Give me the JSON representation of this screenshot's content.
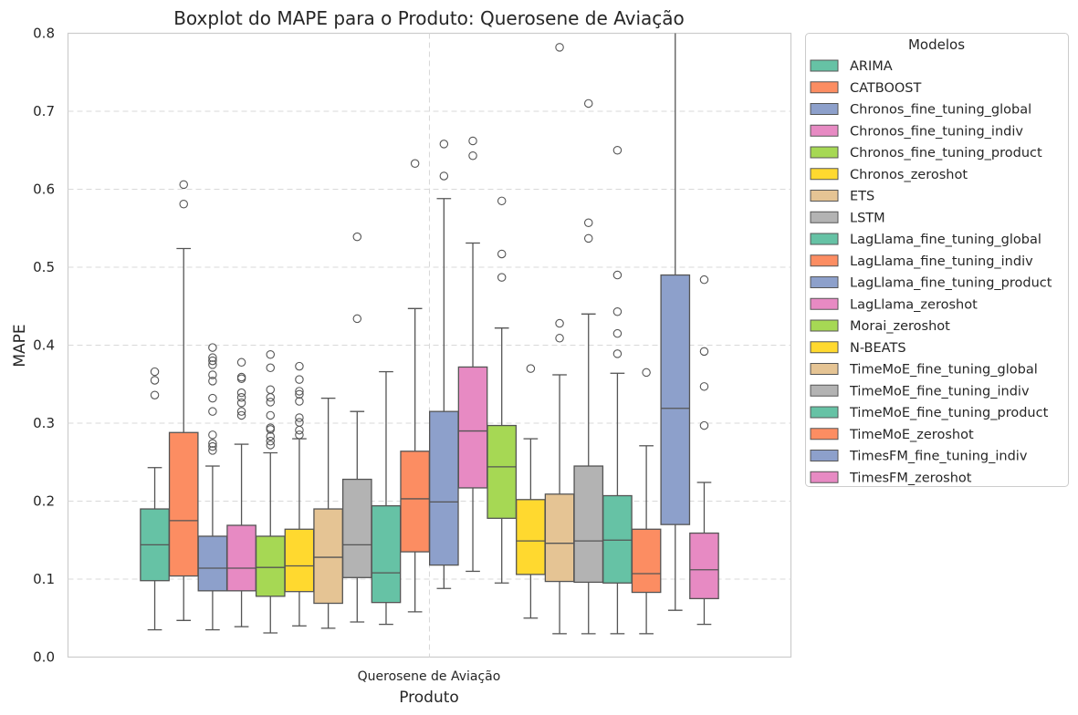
{
  "chart_data": {
    "type": "boxplot",
    "title": "Boxplot do MAPE para o Produto: Querosene de Aviação",
    "xlabel": "Produto",
    "ylabel": "MAPE",
    "category": "Querosene de Aviação",
    "ylim": [
      0.0,
      0.8
    ],
    "yticks": [
      "0.0",
      "0.1",
      "0.2",
      "0.3",
      "0.4",
      "0.5",
      "0.6",
      "0.7",
      "0.8"
    ],
    "grid": true,
    "legend_title": "Modelos",
    "legend_position": "outside-top-right",
    "series": [
      {
        "name": "ARIMA",
        "color": "#66c2a5",
        "whislo": 0.035,
        "q1": 0.098,
        "med": 0.144,
        "q3": 0.19,
        "whishi": 0.243,
        "fliers": [
          0.336,
          0.355,
          0.366
        ]
      },
      {
        "name": "CATBOOST",
        "color": "#fc8d62",
        "whislo": 0.047,
        "q1": 0.104,
        "med": 0.175,
        "q3": 0.288,
        "whishi": 0.524,
        "fliers": [
          0.581,
          0.606
        ]
      },
      {
        "name": "Chronos_fine_tuning_global",
        "color": "#8da0cb",
        "whislo": 0.035,
        "q1": 0.085,
        "med": 0.114,
        "q3": 0.155,
        "whishi": 0.245,
        "fliers": [
          0.265,
          0.27,
          0.274,
          0.285,
          0.315,
          0.332,
          0.354,
          0.362,
          0.375,
          0.38,
          0.384,
          0.397
        ]
      },
      {
        "name": "Chronos_fine_tuning_indiv",
        "color": "#e78ac3",
        "whislo": 0.039,
        "q1": 0.085,
        "med": 0.114,
        "q3": 0.169,
        "whishi": 0.273,
        "fliers": [
          0.31,
          0.315,
          0.326,
          0.333,
          0.339,
          0.357,
          0.359,
          0.378
        ]
      },
      {
        "name": "Chronos_fine_tuning_product",
        "color": "#a6d854",
        "whislo": 0.031,
        "q1": 0.078,
        "med": 0.115,
        "q3": 0.155,
        "whishi": 0.262,
        "fliers": [
          0.272,
          0.277,
          0.283,
          0.292,
          0.294,
          0.31,
          0.327,
          0.333,
          0.343,
          0.371,
          0.388
        ]
      },
      {
        "name": "Chronos_zeroshot",
        "color": "#ffd92f",
        "whislo": 0.04,
        "q1": 0.084,
        "med": 0.117,
        "q3": 0.164,
        "whishi": 0.28,
        "fliers": [
          0.285,
          0.291,
          0.301,
          0.307,
          0.328,
          0.337,
          0.341,
          0.356,
          0.373
        ]
      },
      {
        "name": "ETS",
        "color": "#e5c494",
        "whislo": 0.037,
        "q1": 0.069,
        "med": 0.128,
        "q3": 0.19,
        "whishi": 0.332,
        "fliers": []
      },
      {
        "name": "LSTM",
        "color": "#b3b3b3",
        "whislo": 0.045,
        "q1": 0.102,
        "med": 0.144,
        "q3": 0.228,
        "whishi": 0.315,
        "fliers": [
          0.434,
          0.539
        ]
      },
      {
        "name": "LagLlama_fine_tuning_global",
        "color": "#66c2a5",
        "whislo": 0.042,
        "q1": 0.07,
        "med": 0.108,
        "q3": 0.194,
        "whishi": 0.366,
        "fliers": []
      },
      {
        "name": "LagLlama_fine_tuning_indiv",
        "color": "#fc8d62",
        "whislo": 0.058,
        "q1": 0.135,
        "med": 0.203,
        "q3": 0.264,
        "whishi": 0.447,
        "fliers": [
          0.633
        ]
      },
      {
        "name": "LagLlama_fine_tuning_product",
        "color": "#8da0cb",
        "whislo": 0.088,
        "q1": 0.118,
        "med": 0.199,
        "q3": 0.315,
        "whishi": 0.588,
        "fliers": [
          0.617,
          0.658
        ]
      },
      {
        "name": "LagLlama_zeroshot",
        "color": "#e78ac3",
        "whislo": 0.11,
        "q1": 0.217,
        "med": 0.29,
        "q3": 0.372,
        "whishi": 0.531,
        "fliers": [
          0.643,
          0.662
        ]
      },
      {
        "name": "Morai_zeroshot",
        "color": "#a6d854",
        "whislo": 0.095,
        "q1": 0.178,
        "med": 0.244,
        "q3": 0.297,
        "whishi": 0.422,
        "fliers": [
          0.487,
          0.517,
          0.585
        ]
      },
      {
        "name": "N-BEATS",
        "color": "#ffd92f",
        "whislo": 0.05,
        "q1": 0.106,
        "med": 0.149,
        "q3": 0.202,
        "whishi": 0.28,
        "fliers": [
          0.37
        ]
      },
      {
        "name": "TimeMoE_fine_tuning_global",
        "color": "#e5c494",
        "whislo": 0.03,
        "q1": 0.097,
        "med": 0.146,
        "q3": 0.209,
        "whishi": 0.362,
        "fliers": [
          0.409,
          0.428,
          0.782
        ]
      },
      {
        "name": "TimeMoE_fine_tuning_indiv",
        "color": "#b3b3b3",
        "whislo": 0.03,
        "q1": 0.096,
        "med": 0.149,
        "q3": 0.245,
        "whishi": 0.44,
        "fliers": [
          0.537,
          0.557,
          0.71
        ]
      },
      {
        "name": "TimeMoE_fine_tuning_product",
        "color": "#66c2a5",
        "whislo": 0.03,
        "q1": 0.095,
        "med": 0.15,
        "q3": 0.207,
        "whishi": 0.364,
        "fliers": [
          0.389,
          0.415,
          0.443,
          0.49,
          0.65
        ]
      },
      {
        "name": "TimeMoE_zeroshot",
        "color": "#fc8d62",
        "whislo": 0.03,
        "q1": 0.083,
        "med": 0.107,
        "q3": 0.164,
        "whishi": 0.271,
        "fliers": [
          0.365
        ]
      },
      {
        "name": "TimesFM_fine_tuning_indiv",
        "color": "#8da0cb",
        "whislo": 0.06,
        "q1": 0.17,
        "med": 0.319,
        "q3": 0.49,
        "whishi": 0.8,
        "fliers": []
      },
      {
        "name": "TimesFM_zeroshot",
        "color": "#e78ac3",
        "whislo": 0.042,
        "q1": 0.075,
        "med": 0.112,
        "q3": 0.159,
        "whishi": 0.224,
        "fliers": [
          0.297,
          0.347,
          0.392,
          0.484
        ]
      }
    ]
  }
}
